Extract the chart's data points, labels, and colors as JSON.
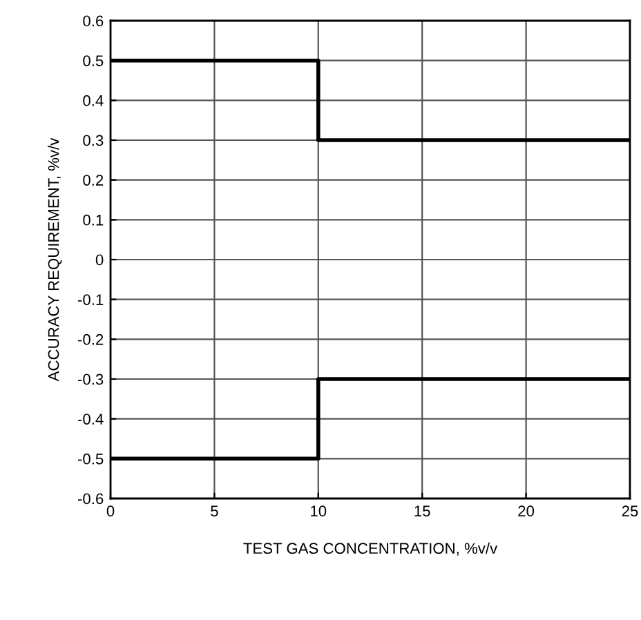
{
  "chart_data": {
    "type": "step",
    "xlabel": "TEST GAS CONCENTRATION, %v/v",
    "ylabel": "ACCURACY REQUIREMENT, %v/v",
    "x": [
      0,
      10,
      25
    ],
    "series": [
      {
        "color": "#000000",
        "values": [
          0.5,
          0.3,
          0.3
        ]
      },
      {
        "color": "#000000",
        "values": [
          -0.5,
          -0.3,
          -0.3
        ]
      }
    ],
    "xlim": [
      0,
      25
    ],
    "xticks": [
      0,
      5,
      10,
      15,
      20,
      25
    ],
    "ylim": [
      -0.6,
      0.6
    ],
    "yticks": [
      -0.6,
      -0.5,
      -0.4,
      -0.3,
      -0.2,
      -0.1,
      0,
      0.1,
      0.2,
      0.3,
      0.4,
      0.5,
      0.6
    ],
    "grid": true,
    "line_style": "solid"
  }
}
